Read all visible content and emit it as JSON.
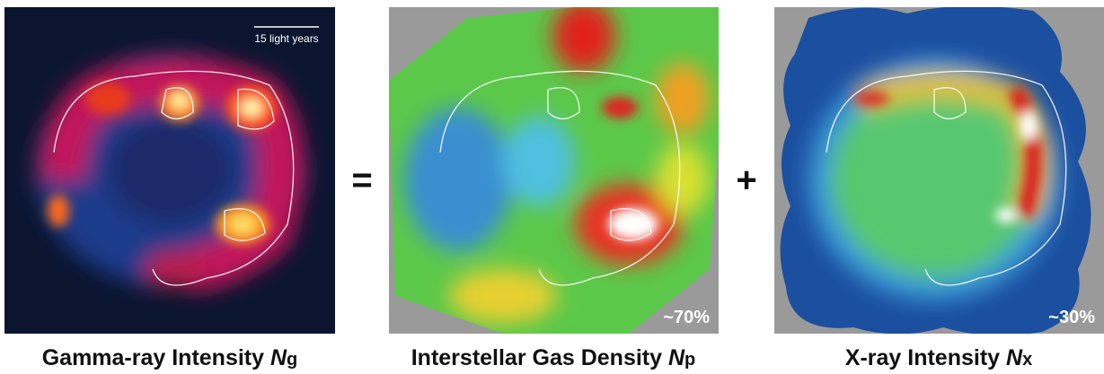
{
  "panels": [
    {
      "scale_bar": "15 light years",
      "caption": {
        "text": "Gamma-ray Intensity ",
        "symbol": "N",
        "subscript": "g"
      }
    },
    {
      "fraction": "~70%",
      "caption": {
        "text": "Interstellar Gas Density ",
        "symbol": "N",
        "subscript": "p"
      }
    },
    {
      "fraction": "~30%",
      "caption": {
        "text": "X-ray Intensity ",
        "symbol": "N",
        "subscript": "x"
      }
    }
  ],
  "operators": [
    "=",
    "+"
  ]
}
